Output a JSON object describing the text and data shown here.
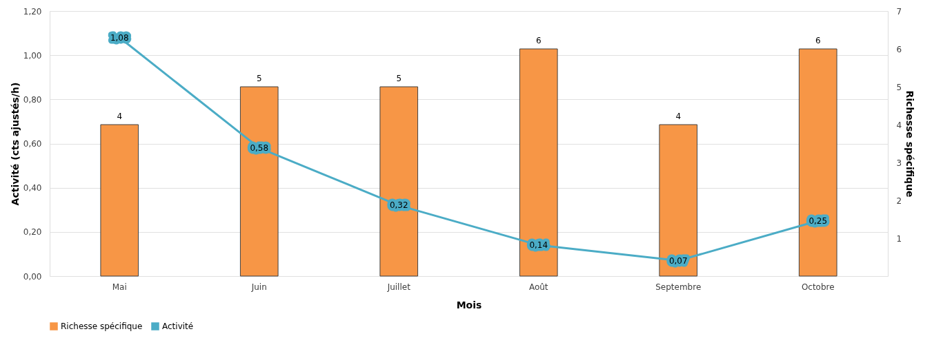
{
  "chart_data": {
    "type": "bar",
    "xlabel": "Mois",
    "ylabel": "Activité (cts ajustés/h)",
    "y2label": "Richesse spécifique",
    "categories": [
      "Mai",
      "Juin",
      "Juillet",
      "Août",
      "Septembre",
      "Octobre"
    ],
    "series": [
      {
        "name": "Richesse spécifique",
        "axis": "y2",
        "color": "#f79646",
        "values": [
          4,
          5,
          5,
          6,
          4,
          6
        ],
        "value_labels": [
          "4",
          "5",
          "5",
          "6",
          "4",
          "6"
        ]
      },
      {
        "name": "Activité",
        "type": "line",
        "color": "#4bacc6",
        "values": [
          1.08,
          0.58,
          0.32,
          0.14,
          0.07,
          0.25
        ],
        "value_labels": [
          "1,08",
          "0,58",
          "0,32",
          "0,14",
          "0,07",
          "0,25"
        ]
      }
    ],
    "ylim": [
      0,
      1.2
    ],
    "yticks": [
      {
        "value": 0,
        "label": "0,00"
      },
      {
        "value": 0.2,
        "label": "0,20"
      },
      {
        "value": 0.4,
        "label": "0,40"
      },
      {
        "value": 0.6,
        "label": "0,60"
      },
      {
        "value": 0.8,
        "label": "0,80"
      },
      {
        "value": 1.0,
        "label": "1,00"
      },
      {
        "value": 1.2,
        "label": "1,20"
      }
    ],
    "y2lim": [
      0,
      7
    ],
    "y2ticks": [
      1,
      2,
      3,
      4,
      5,
      6,
      7
    ],
    "grid": "y",
    "legend": "bottom",
    "line_style": "solid"
  }
}
